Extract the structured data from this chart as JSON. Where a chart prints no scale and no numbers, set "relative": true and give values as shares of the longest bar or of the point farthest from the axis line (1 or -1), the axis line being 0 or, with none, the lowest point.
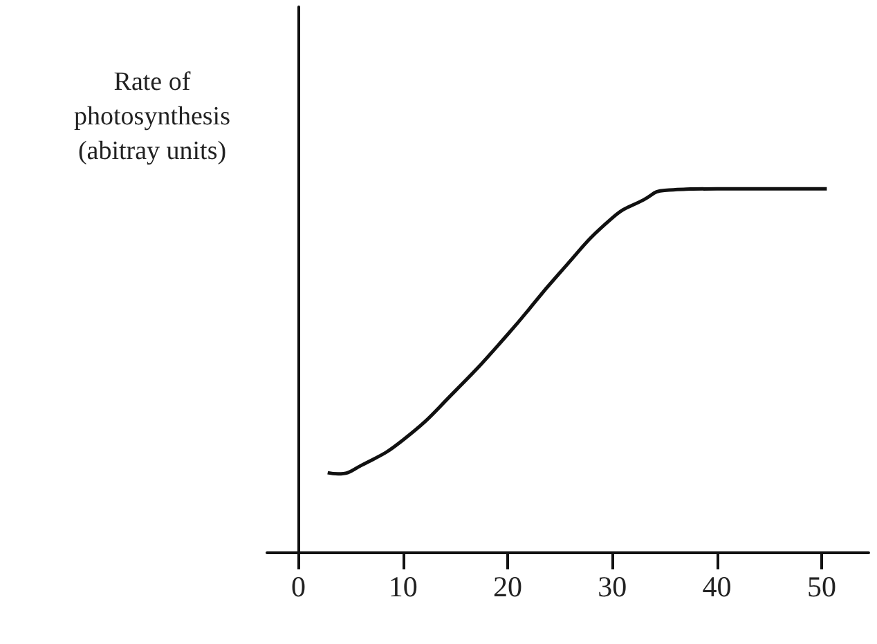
{
  "chart_data": {
    "type": "line",
    "ylabel": "Rate of\nphotosynthesis\n(abitray units)",
    "relative": true,
    "xlim": [
      -3,
      54.5
    ],
    "xticks": [
      0,
      10,
      20,
      30,
      40,
      50
    ],
    "color": "#111111",
    "marker": "none",
    "x": [
      2.8,
      3.8,
      6,
      10,
      15,
      20,
      25,
      30,
      33,
      35,
      40,
      45,
      50.5
    ],
    "values": [
      0.22,
      0.217,
      0.24,
      0.31,
      0.445,
      0.6,
      0.77,
      0.92,
      0.97,
      0.996,
      1,
      1,
      1
    ]
  }
}
